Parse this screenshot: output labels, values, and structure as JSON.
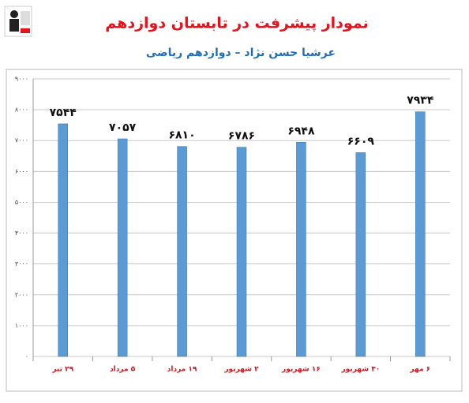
{
  "chart_data": {
    "type": "bar",
    "title": "نمودار پیشرفت در تابستان دوازدهم",
    "subtitle": "عرشیا حسن نژاد – دوازدهم ریاضی",
    "categories": [
      "۲۹ تیر",
      "۵ مرداد",
      "۱۹ مرداد",
      "۲ شهریور",
      "۱۶ شهریور",
      "۳۰ شهریور",
      "۶ مهر"
    ],
    "values": [
      7544,
      7057,
      6810,
      6786,
      6948,
      6609,
      7934
    ],
    "value_labels": [
      "۷۵۴۴",
      "۷۰۵۷",
      "۶۸۱۰",
      "۶۷۸۶",
      "۶۹۴۸",
      "۶۶۰۹",
      "۷۹۳۴"
    ],
    "color": "#5b9bd5",
    "ylim": [
      0,
      9000
    ],
    "yticks": [
      {
        "value": 0,
        "label": "۰"
      },
      {
        "value": 1000,
        "label": "۱۰۰۰"
      },
      {
        "value": 2000,
        "label": "۲۰۰۰"
      },
      {
        "value": 3000,
        "label": "۳۰۰۰"
      },
      {
        "value": 4000,
        "label": "۴۰۰۰"
      },
      {
        "value": 5000,
        "label": "۵۰۰۰"
      },
      {
        "value": 6000,
        "label": "۶۰۰۰"
      },
      {
        "value": 7000,
        "label": "۷۰۰۰"
      },
      {
        "value": 8000,
        "label": "۸۰۰۰"
      },
      {
        "value": 9000,
        "label": "۹۰۰۰"
      }
    ],
    "grid": true
  }
}
